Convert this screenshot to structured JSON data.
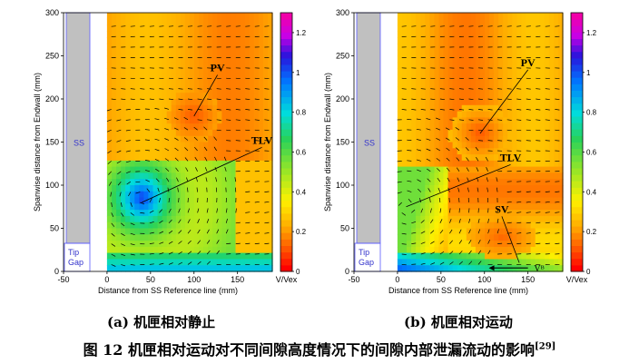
{
  "figure_caption": {
    "text": "图 12 机匣相对运动对不同间隙高度情况下的间隙内部泄漏流动的影响",
    "ref": "[29]"
  },
  "chart_data": [
    {
      "type": "heatmap",
      "panel_caption": "(a)  机匣相对静止",
      "xlabel": "Distance from SS Reference line (mm)",
      "ylabel": "Spanwise distance from Endwall (mm)",
      "xticks": [
        -50,
        0,
        50,
        100,
        150
      ],
      "yticks": [
        0,
        50,
        100,
        150,
        200,
        250,
        300
      ],
      "xlim": [
        -50,
        190
      ],
      "ylim": [
        0,
        300
      ],
      "colorbar": {
        "label": "V/Vex",
        "ticks": [
          0,
          0.2,
          0.4,
          0.6,
          0.8,
          1,
          1.2
        ],
        "range": [
          0,
          1.3
        ]
      },
      "labels": {
        "ss": "SS",
        "tip_gap": [
          "Tip",
          "Gap"
        ]
      },
      "annotations": [
        {
          "text": "PV",
          "target": [
            100,
            180
          ],
          "label_at": [
            127,
            232
          ]
        },
        {
          "text": "TLV",
          "target": [
            40,
            80
          ],
          "label_at": [
            178,
            148
          ]
        }
      ],
      "features": [
        {
          "name": "PV",
          "center": [
            100,
            180
          ],
          "peak": 0.2
        },
        {
          "name": "TLV",
          "center": [
            40,
            80
          ],
          "peak": 0.22
        }
      ]
    },
    {
      "type": "heatmap",
      "panel_caption": "(b)  机匣相对运动",
      "xlabel": "Distance from SS Reference line (mm)",
      "ylabel": "Spanwise distance from Endwall (mm)",
      "xticks": [
        -50,
        0,
        50,
        100,
        150
      ],
      "yticks": [
        0,
        50,
        100,
        150,
        200,
        250,
        300
      ],
      "xlim": [
        -50,
        190
      ],
      "ylim": [
        0,
        300
      ],
      "colorbar": {
        "label": "V/Vex",
        "ticks": [
          0,
          0.2,
          0.4,
          0.6,
          0.8,
          1,
          1.2
        ],
        "range": [
          0,
          1.3
        ]
      },
      "labels": {
        "ss": "SS",
        "tip_gap": [
          "Tip",
          "Gap"
        ],
        "vb": "Vᴮ"
      },
      "annotations": [
        {
          "text": "PV",
          "target": [
            95,
            160
          ],
          "label_at": [
            150,
            238
          ]
        },
        {
          "text": "TLV",
          "target": [
            10,
            75
          ],
          "label_at": [
            130,
            128
          ]
        },
        {
          "text": "SV",
          "target": [
            140,
            10
          ],
          "label_at": [
            120,
            68
          ]
        }
      ],
      "features": [
        {
          "name": "PV",
          "center": [
            95,
            160
          ],
          "peak": 0.2
        },
        {
          "name": "TLV",
          "center": [
            10,
            75
          ],
          "peak": 0.2
        },
        {
          "name": "SV",
          "center": [
            120,
            40
          ],
          "peak": 0.2
        }
      ]
    }
  ]
}
